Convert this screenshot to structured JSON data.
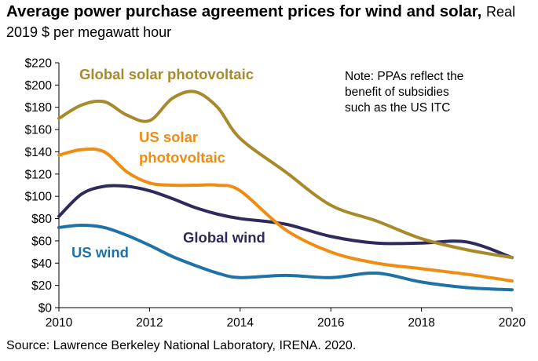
{
  "title": "Average power purchase agreement prices for wind and solar,",
  "subtitle": "Real 2019 $ per megawatt hour",
  "source": "Source: Lawrence Berkeley National Laboratory, IRENA. 2020.",
  "note": [
    "Note: PPAs reflect the",
    "benefit of subsidies",
    "such as the US ITC"
  ],
  "colors": {
    "global_solar": "#a88a2c",
    "us_solar": "#f08c12",
    "global_wind": "#2e2a5c",
    "us_wind": "#1f72a8"
  },
  "chart_data": {
    "type": "line",
    "title": "Average power purchase agreement prices for wind and solar, Real 2019 $ per megawatt hour",
    "xlabel": "",
    "ylabel": "",
    "xlim": [
      2010,
      2020
    ],
    "ylim": [
      0,
      220
    ],
    "x_ticks": [
      2010,
      2012,
      2014,
      2016,
      2018,
      2020
    ],
    "y_ticks": [
      "$0",
      "$20",
      "$40",
      "$60",
      "$80",
      "$100",
      "$120",
      "$140",
      "$160",
      "$180",
      "$200",
      "$220"
    ],
    "grid": false,
    "series": [
      {
        "name": "Global solar photovoltaic",
        "color_key": "global_solar",
        "x": [
          2010,
          2010.5,
          2011,
          2011.5,
          2012,
          2012.5,
          2013,
          2013.5,
          2014,
          2015,
          2016,
          2017,
          2018,
          2019,
          2020
        ],
        "values": [
          170,
          182,
          185,
          173,
          168,
          188,
          194,
          180,
          152,
          122,
          92,
          78,
          62,
          52,
          45
        ]
      },
      {
        "name": "US solar photovoltaic",
        "x": [
          2010,
          2010.5,
          2011,
          2011.5,
          2012,
          2012.5,
          2013,
          2013.5,
          2014,
          2015,
          2016,
          2017,
          2018,
          2019,
          2020
        ],
        "values": [
          137,
          142,
          140,
          122,
          112,
          110,
          110,
          110,
          105,
          70,
          50,
          40,
          35,
          30,
          24
        ]
      },
      {
        "name": "Global wind",
        "x": [
          2010,
          2010.5,
          2011,
          2011.5,
          2012,
          2012.5,
          2013,
          2013.5,
          2014,
          2015,
          2016,
          2017,
          2018,
          2019,
          2020
        ],
        "values": [
          82,
          102,
          109,
          109,
          105,
          98,
          90,
          84,
          80,
          75,
          64,
          58,
          58,
          59,
          45
        ]
      },
      {
        "name": "US wind",
        "x": [
          2010,
          2010.5,
          2011,
          2011.5,
          2012,
          2012.5,
          2013,
          2013.5,
          2014,
          2015,
          2016,
          2017,
          2018,
          2019,
          2020
        ],
        "values": [
          72,
          74,
          72,
          65,
          56,
          46,
          38,
          31,
          27,
          29,
          27,
          31,
          23,
          18,
          16
        ]
      }
    ]
  },
  "labels": {
    "global_solar": "Global solar photovoltaic",
    "us_solar_line1": "US solar",
    "us_solar_line2": "photovoltaic",
    "global_wind": "Global wind",
    "us_wind": "US wind"
  }
}
